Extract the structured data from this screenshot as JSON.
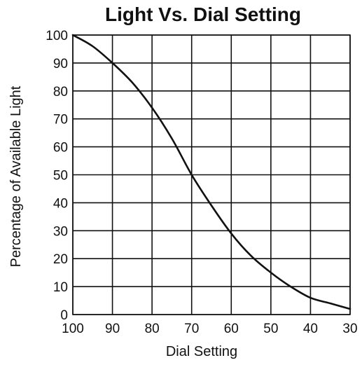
{
  "chart_data": {
    "type": "line",
    "title": "Light Vs. Dial Setting",
    "xlabel": "Dial Setting",
    "ylabel": "Percentage of Available Light",
    "x_reversed": true,
    "xlim": [
      100,
      30
    ],
    "ylim": [
      0,
      100
    ],
    "x_ticks": [
      "100",
      "90",
      "80",
      "70",
      "60",
      "50",
      "40",
      "30"
    ],
    "y_ticks": [
      "0",
      "10",
      "20",
      "30",
      "40",
      "50",
      "60",
      "70",
      "80",
      "90",
      "100"
    ],
    "grid": true,
    "series": [
      {
        "x": [
          100,
          95,
          90,
          85,
          80,
          75,
          70,
          65,
          60,
          55,
          50,
          45,
          40,
          35,
          30
        ],
        "y": [
          100,
          96,
          90,
          83,
          74,
          63,
          50,
          39,
          29,
          21,
          15,
          10,
          6,
          4,
          2
        ]
      }
    ]
  }
}
